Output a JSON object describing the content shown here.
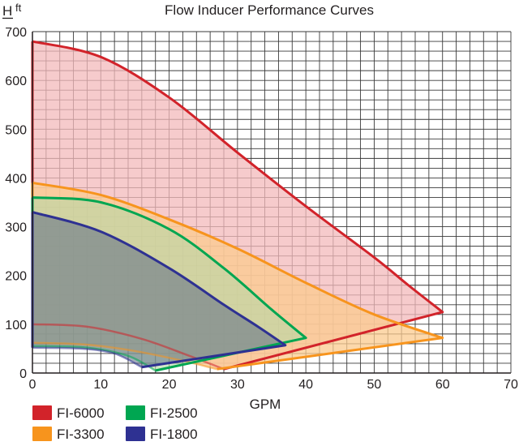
{
  "chart_data": {
    "type": "area",
    "title": "Flow Inducer Performance Curves",
    "xlabel": "GPM",
    "ylabel_main": "H",
    "ylabel_unit": "ft",
    "xlim": [
      0,
      70
    ],
    "ylim": [
      0,
      700
    ],
    "x_ticks": [
      0,
      10,
      20,
      30,
      40,
      50,
      60,
      70
    ],
    "y_ticks": [
      0,
      100,
      200,
      300,
      400,
      500,
      600,
      700
    ],
    "grid": true,
    "legend_position": "bottom-left",
    "series": [
      {
        "name": "FI-6000",
        "color": "#d2232a",
        "fill": "#f3b9bb",
        "fill_opacity": 0.75,
        "upper": [
          [
            0,
            680
          ],
          [
            10,
            648
          ],
          [
            20,
            565
          ],
          [
            30,
            452
          ],
          [
            40,
            342
          ],
          [
            50,
            237
          ],
          [
            55,
            180
          ],
          [
            60,
            125
          ]
        ],
        "lower": [
          [
            60,
            125
          ],
          [
            28,
            8
          ]
        ],
        "inner": [
          [
            0,
            100
          ],
          [
            8,
            95
          ],
          [
            16,
            70
          ],
          [
            23,
            35
          ],
          [
            28,
            8
          ]
        ]
      },
      {
        "name": "FI-3300",
        "color": "#f7941d",
        "fill": "#fbcb8f",
        "fill_opacity": 0.75,
        "upper": [
          [
            0,
            390
          ],
          [
            10,
            365
          ],
          [
            20,
            315
          ],
          [
            30,
            255
          ],
          [
            40,
            185
          ],
          [
            50,
            120
          ],
          [
            60,
            72
          ]
        ],
        "lower": [
          [
            60,
            72
          ],
          [
            27,
            8
          ]
        ],
        "inner": [
          [
            0,
            62
          ],
          [
            8,
            58
          ],
          [
            15,
            45
          ],
          [
            22,
            25
          ],
          [
            27,
            8
          ]
        ]
      },
      {
        "name": "FI-2500",
        "color": "#00a651",
        "fill": "#b6d9a5",
        "fill_opacity": 0.6,
        "upper": [
          [
            0,
            360
          ],
          [
            10,
            350
          ],
          [
            20,
            295
          ],
          [
            28,
            215
          ],
          [
            35,
            130
          ],
          [
            40,
            72
          ]
        ],
        "lower": [
          [
            40,
            72
          ],
          [
            18,
            5
          ]
        ],
        "inner": [
          [
            0,
            55
          ],
          [
            8,
            52
          ],
          [
            14,
            35
          ],
          [
            18,
            5
          ]
        ]
      },
      {
        "name": "FI-1800",
        "color": "#2e3192",
        "fill": "#5f6e86",
        "fill_opacity": 0.55,
        "upper": [
          [
            0,
            330
          ],
          [
            10,
            290
          ],
          [
            20,
            215
          ],
          [
            28,
            140
          ],
          [
            33,
            95
          ],
          [
            37,
            57
          ]
        ],
        "lower": [
          [
            37,
            57
          ],
          [
            16,
            12
          ]
        ],
        "inner": [
          [
            0,
            52
          ],
          [
            7,
            50
          ],
          [
            12,
            40
          ],
          [
            16,
            12
          ]
        ]
      }
    ]
  }
}
